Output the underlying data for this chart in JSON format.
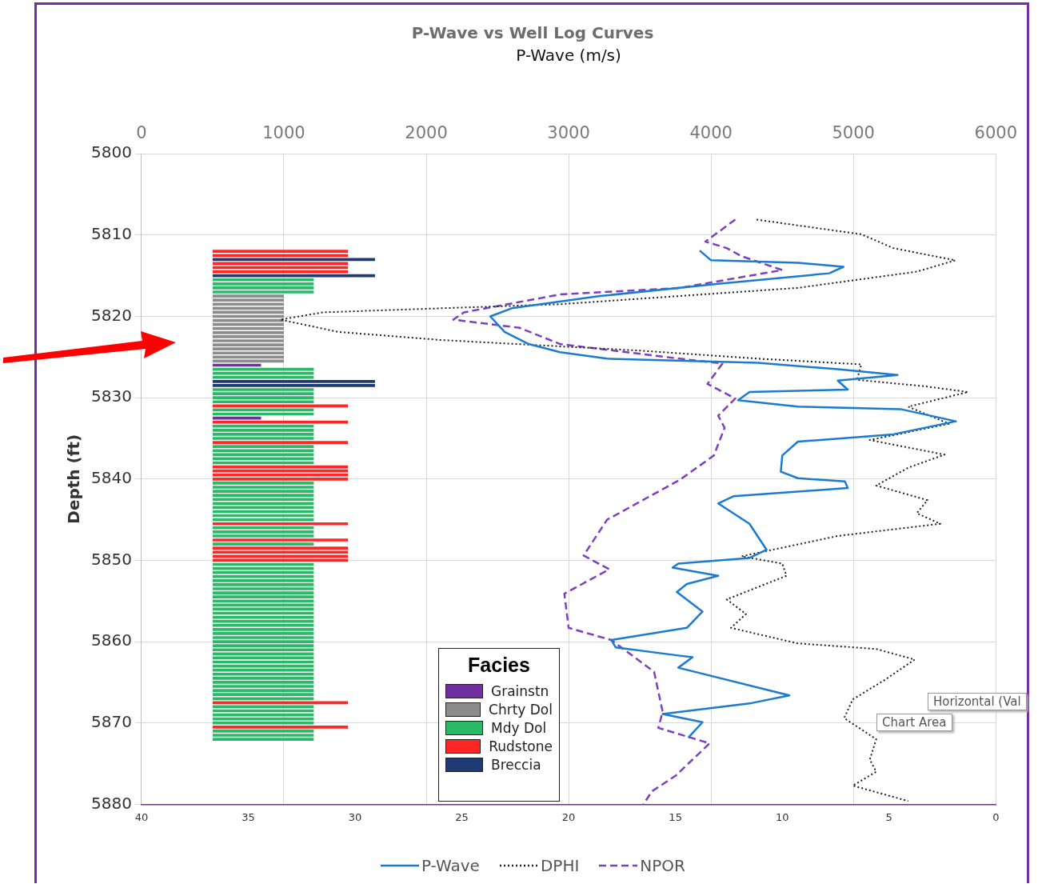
{
  "chart_data": {
    "type": "line",
    "title": "P-Wave vs Well Log Curves",
    "x2label": "P-Wave (m/s)",
    "ylabel": "Depth (ft)",
    "legend_title": "Facies",
    "orientation": "horizontal",
    "ylim": [
      5880,
      5800
    ],
    "yticks": [
      5800,
      5810,
      5820,
      5830,
      5840,
      5850,
      5860,
      5870,
      5880
    ],
    "xlim": [
      40,
      0
    ],
    "xticks": [
      40,
      35,
      30,
      25,
      20,
      15,
      10,
      5,
      0
    ],
    "x2lim": [
      0,
      6000
    ],
    "x2ticks": [
      0,
      1000,
      2000,
      3000,
      4000,
      5000,
      6000
    ],
    "grid": true,
    "legend": "bottom",
    "marker": "none",
    "annotations": [
      "Horizontal (Val",
      "Chart Area"
    ],
    "series": [
      {
        "name": "Grainstn",
        "type": "bar",
        "axis": "x2",
        "color": "#7030a0",
        "x": [
          5826,
          5832.5
        ],
        "base": [
          500,
          500
        ],
        "values": [
          340,
          340
        ]
      },
      {
        "name": "Chrty Dol",
        "type": "bar",
        "axis": "x2",
        "color": "#8c8c8c",
        "x": [
          5817.5,
          5818,
          5818.5,
          5819,
          5819.5,
          5820,
          5820.5,
          5821,
          5821.5,
          5822,
          5822.5,
          5823,
          5823.5,
          5824,
          5824.5,
          5825,
          5825.5
        ],
        "base": [
          500,
          500,
          500,
          500,
          500,
          500,
          500,
          500,
          500,
          500,
          500,
          500,
          500,
          500,
          500,
          500,
          500
        ],
        "values": [
          500,
          500,
          500,
          500,
          500,
          500,
          500,
          500,
          500,
          500,
          500,
          500,
          500,
          500,
          500,
          500,
          500
        ]
      },
      {
        "name": "Mdy Dol",
        "type": "bar",
        "axis": "x2",
        "color": "#29b967",
        "x": [
          5815.5,
          5816,
          5816.5,
          5817,
          5826.5,
          5827,
          5827.5,
          5829,
          5829.5,
          5830,
          5830.5,
          5831.5,
          5832,
          5833.5,
          5834,
          5834.5,
          5835,
          5836,
          5836.5,
          5837,
          5837.5,
          5838,
          5840.5,
          5841,
          5841.5,
          5842,
          5842.5,
          5843,
          5843.5,
          5844,
          5844.5,
          5845,
          5846,
          5846.5,
          5847,
          5848,
          5850.5,
          5851,
          5851.5,
          5852,
          5852.5,
          5853,
          5853.5,
          5854,
          5854.5,
          5855,
          5855.5,
          5856,
          5856.5,
          5857,
          5857.5,
          5858,
          5858.5,
          5859,
          5859.5,
          5860,
          5860.5,
          5861,
          5861.5,
          5862,
          5862.5,
          5863,
          5863.5,
          5864,
          5864.5,
          5865,
          5865.5,
          5866,
          5866.5,
          5867,
          5868,
          5868.5,
          5869,
          5869.5,
          5870,
          5871,
          5871.5,
          5872
        ],
        "base": [
          500,
          500,
          500,
          500,
          500,
          500,
          500,
          500,
          500,
          500,
          500,
          500,
          500,
          500,
          500,
          500,
          500,
          500,
          500,
          500,
          500,
          500,
          500,
          500,
          500,
          500,
          500,
          500,
          500,
          500,
          500,
          500,
          500,
          500,
          500,
          500,
          500,
          500,
          500,
          500,
          500,
          500,
          500,
          500,
          500,
          500,
          500,
          500,
          500,
          500,
          500,
          500,
          500,
          500,
          500,
          500,
          500,
          500,
          500,
          500,
          500,
          500,
          500,
          500,
          500,
          500,
          500,
          500,
          500,
          500,
          500,
          500,
          500,
          500,
          500,
          500,
          500,
          500
        ],
        "values": [
          710,
          710,
          710,
          710,
          710,
          710,
          710,
          710,
          710,
          710,
          710,
          710,
          710,
          710,
          710,
          710,
          710,
          710,
          710,
          710,
          710,
          710,
          710,
          710,
          710,
          710,
          710,
          710,
          710,
          710,
          710,
          710,
          710,
          710,
          710,
          710,
          710,
          710,
          710,
          710,
          710,
          710,
          710,
          710,
          710,
          710,
          710,
          710,
          710,
          710,
          710,
          710,
          710,
          710,
          710,
          710,
          710,
          710,
          710,
          710,
          710,
          710,
          710,
          710,
          710,
          710,
          710,
          710,
          710,
          710,
          710,
          710,
          710,
          710,
          710,
          710,
          710,
          710
        ]
      },
      {
        "name": "Rudstone",
        "type": "bar",
        "axis": "x2",
        "color": "#ff2626",
        "x": [
          5812,
          5812.5,
          5813.5,
          5814,
          5814.5,
          5831,
          5833,
          5835.5,
          5838.5,
          5839,
          5839.5,
          5840,
          5845.5,
          5847.5,
          5848.5,
          5849,
          5849.5,
          5850,
          5867.5,
          5870.5
        ],
        "base": [
          500,
          500,
          500,
          500,
          500,
          500,
          500,
          500,
          500,
          500,
          500,
          500,
          500,
          500,
          500,
          500,
          500,
          500,
          500,
          500
        ],
        "values": [
          950,
          950,
          950,
          950,
          950,
          950,
          950,
          950,
          950,
          950,
          950,
          950,
          950,
          950,
          950,
          950,
          950,
          950,
          950,
          950
        ]
      },
      {
        "name": "Breccia",
        "type": "bar",
        "axis": "x2",
        "color": "#1f3a73",
        "x": [
          5813,
          5815,
          5828,
          5828.5
        ],
        "base": [
          500,
          500,
          500,
          500
        ],
        "values": [
          1140,
          1140,
          1140,
          1140
        ]
      },
      {
        "name": "P-Wave",
        "type": "line",
        "axis": "x2",
        "color": "#1b7bd0",
        "line_style": "solid",
        "x": [
          5811.9,
          5813.1,
          5813.4,
          5813.9,
          5814.7,
          5816.0,
          5817.5,
          5819.0,
          5820.0,
          5821.9,
          5823.4,
          5824.4,
          5825.2,
          5825.7,
          5826.5,
          5827.2,
          5827.9,
          5829.0,
          5829.3,
          5830.3,
          5831.1,
          5831.4,
          5832.9,
          5834.5,
          5835.4,
          5837.1,
          5839.1,
          5839.9,
          5840.3,
          5841.1,
          5842.1,
          5843.0,
          5845.5,
          5848.7,
          5849.7,
          5850.4,
          5850.9,
          5851.9,
          5852.9,
          5853.9,
          5856.3,
          5858.3,
          5859.8,
          5860.7,
          5861.7,
          5861.9,
          5863.2,
          5866.6,
          5867.6,
          5868.9,
          5869.9,
          5871.8
        ],
        "values": [
          3920,
          4000,
          4610,
          4930,
          4830,
          4050,
          3220,
          2600,
          2450,
          2550,
          2720,
          2940,
          3270,
          4330,
          4890,
          5310,
          4890,
          4960,
          4270,
          4190,
          4610,
          5330,
          5720,
          5280,
          4610,
          4500,
          4490,
          4610,
          4940,
          4960,
          4160,
          4050,
          4270,
          4390,
          4270,
          3770,
          3730,
          4050,
          3830,
          3760,
          3940,
          3830,
          3300,
          3330,
          3770,
          3870,
          3770,
          4550,
          4270,
          3660,
          3940,
          3840
        ]
      },
      {
        "name": "DPHI",
        "type": "line",
        "color": "#222222",
        "line_style": "dotted",
        "x": [
          5808.1,
          5808.8,
          5809.9,
          5811.6,
          5813.1,
          5814.5,
          5816.5,
          5818.5,
          5819.5,
          5820.4,
          5821.9,
          5822.9,
          5824.2,
          5825.2,
          5825.9,
          5827.8,
          5828.6,
          5829.3,
          5831.1,
          5833.2,
          5835.2,
          5837.0,
          5838.6,
          5840.8,
          5842.6,
          5844.2,
          5845.5,
          5847.0,
          5849.5,
          5850.4,
          5851.9,
          5854.8,
          5856.6,
          5858.3,
          5860.2,
          5860.9,
          5862.2,
          5864.7,
          5867.1,
          5869.4,
          5872.0,
          5874.5,
          5876.0,
          5877.7,
          5879.6
        ],
        "values": [
          11.2,
          9.3,
          6.3,
          4.8,
          1.9,
          3.7,
          9.3,
          20.4,
          31.5,
          33.5,
          30.8,
          26.0,
          16.7,
          11.1,
          6.3,
          6.5,
          3.3,
          1.3,
          4.1,
          2.2,
          5.9,
          2.4,
          4.1,
          5.6,
          3.2,
          3.7,
          2.6,
          7.4,
          11.9,
          10.0,
          9.8,
          12.6,
          11.7,
          12.4,
          9.3,
          5.6,
          3.8,
          5.2,
          6.7,
          7.1,
          5.6,
          5.9,
          5.6,
          6.7,
          4.1
        ]
      },
      {
        "name": "NPOR",
        "type": "line",
        "color": "#7e3fbf",
        "line_style": "dashed",
        "x": [
          5808.1,
          5810.8,
          5811.6,
          5812.6,
          5814.3,
          5816.5,
          5817.3,
          5819.5,
          5820.4,
          5821.4,
          5823.4,
          5825.2,
          5825.8,
          5828.3,
          5830.1,
          5832.2,
          5833.7,
          5837.1,
          5840.1,
          5845.0,
          5849.4,
          5851.1,
          5854.1,
          5858.3,
          5859.8,
          5863.7,
          5868.6,
          5870.6,
          5872.5,
          5876.5,
          5878.4,
          5880
        ],
        "values": [
          12.2,
          13.6,
          12.6,
          11.9,
          10.0,
          14.8,
          20.4,
          24.9,
          25.4,
          22.3,
          20.4,
          14.8,
          12.8,
          13.5,
          12.2,
          13.0,
          12.7,
          13.2,
          14.8,
          18.2,
          19.3,
          18.1,
          20.2,
          20.0,
          18.0,
          16.0,
          15.6,
          15.8,
          13.4,
          15.0,
          16.1,
          16.5
        ]
      }
    ]
  }
}
